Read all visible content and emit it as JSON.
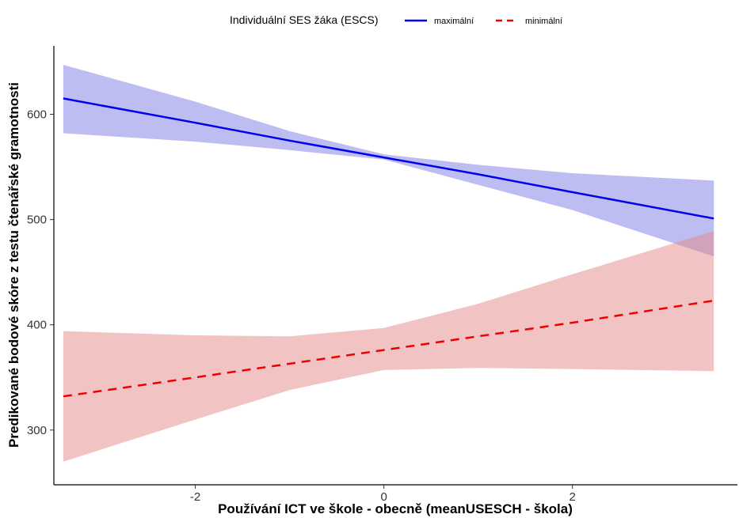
{
  "chart_data": {
    "type": "line",
    "xlabel": "Používání ICT ve škole - obecně (meanUSESCH - škola)",
    "ylabel": "Predikované bodové skóre z testu čtenářské gramotnosti",
    "xlim": [
      -3.5,
      3.75
    ],
    "ylim": [
      248,
      665
    ],
    "x_ticks": [
      -2,
      0,
      2
    ],
    "x_tick_labels": [
      "-2",
      "0",
      "2"
    ],
    "y_ticks": [
      300,
      400,
      500,
      600
    ],
    "y_tick_labels": [
      "300",
      "400",
      "500",
      "600"
    ],
    "grid": false,
    "legend": {
      "title": "Individuální SES žáka  (ESCS)",
      "position": "top",
      "entries": [
        "maximální",
        "minimální"
      ]
    },
    "series": [
      {
        "name": "maximální",
        "color": "#0000ee",
        "band_color": "#7b7be3",
        "line_style": "solid",
        "x": [
          -3.4,
          -2,
          -1,
          0,
          1,
          2,
          3.5
        ],
        "y": [
          615,
          592,
          575,
          559,
          543,
          526,
          501
        ],
        "lower": [
          582,
          574,
          566,
          557,
          533,
          509,
          465
        ],
        "upper": [
          647,
          612,
          584,
          562,
          552,
          544,
          537
        ]
      },
      {
        "name": "minimální",
        "color": "#ee0000",
        "band_color": "#e38888",
        "line_style": "dashed",
        "x": [
          -3.4,
          -2,
          -1,
          0,
          1,
          2,
          3.5
        ],
        "y": [
          332,
          350,
          363,
          376,
          389,
          402,
          423
        ],
        "lower": [
          270,
          310,
          338,
          357,
          359,
          358,
          356
        ],
        "upper": [
          394,
          390,
          389,
          397,
          420,
          448,
          489
        ]
      }
    ]
  }
}
